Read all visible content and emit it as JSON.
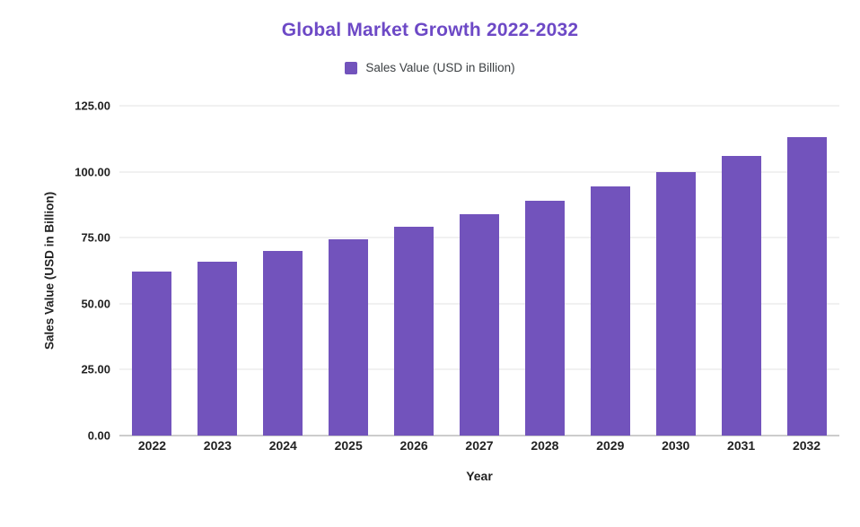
{
  "chart_data": {
    "type": "bar",
    "title": "Global Market Growth 2022-2032",
    "legend": "Sales Value (USD in Billion)",
    "xlabel": "Year",
    "ylabel": "Sales Value (USD in Billion)",
    "categories": [
      "2022",
      "2023",
      "2024",
      "2025",
      "2026",
      "2027",
      "2028",
      "2029",
      "2030",
      "2031",
      "2032"
    ],
    "values": [
      62,
      66,
      70,
      74.5,
      79,
      84,
      89,
      94.5,
      100,
      106,
      113
    ],
    "ylim": [
      0,
      125
    ],
    "ytick_values": [
      0,
      25,
      50,
      75,
      100,
      125
    ],
    "ytick_labels": [
      "0.00",
      "25.00",
      "50.00",
      "75.00",
      "100.00",
      "125.00"
    ],
    "grid": true,
    "legend_position": "top",
    "bar_color": "#7253BC",
    "title_color": "#6D49C6"
  }
}
